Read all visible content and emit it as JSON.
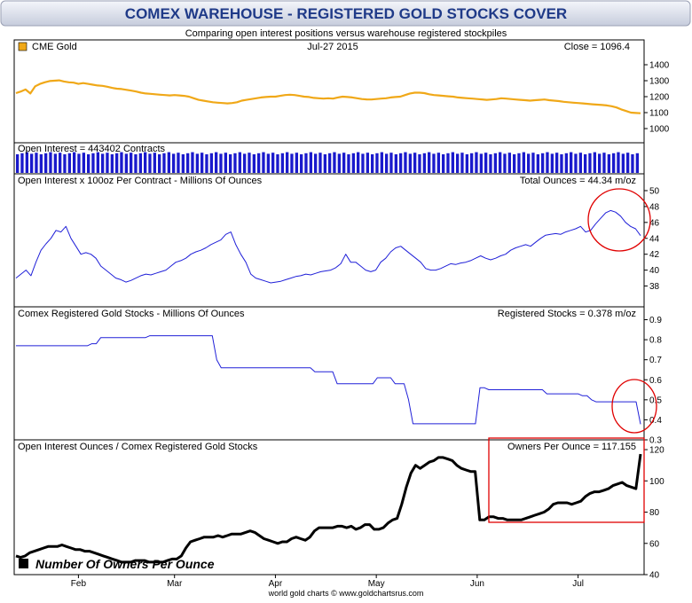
{
  "header": {
    "title": "COMEX WAREHOUSE - REGISTERED GOLD STOCKS COVER",
    "subtitle": "Comparing open interest positions versus warehouse registered stockpiles"
  },
  "footer": {
    "credit": "world gold charts  ©  www.goldchartsrus.com"
  },
  "colors": {
    "gold": "#f0a818",
    "oi": "#2020d8",
    "bars": "#1a1acc",
    "stocks": "#2020d8",
    "owners": "#000000",
    "annot": "#e00000",
    "title": "#1f3a88"
  },
  "chart_data": [
    {
      "type": "line",
      "panel": "gold",
      "legend": "CME Gold",
      "date_label": "Jul-27  2015",
      "close_label": "Close = 1096.4",
      "y_ticks": [
        1000,
        1100,
        1200,
        1300,
        1400
      ],
      "ylim": [
        950,
        1450
      ],
      "x_month_labels": [
        "Feb",
        "Mar",
        "Apr",
        "May",
        "Jun",
        "Jul"
      ],
      "x_month_index": [
        13,
        33,
        54,
        75,
        96,
        117
      ],
      "series": [
        {
          "values": [
            1222,
            1232,
            1245,
            1220,
            1265,
            1280,
            1290,
            1298,
            1300,
            1302,
            1295,
            1290,
            1288,
            1280,
            1285,
            1280,
            1275,
            1270,
            1268,
            1262,
            1255,
            1250,
            1248,
            1243,
            1238,
            1232,
            1225,
            1220,
            1218,
            1215,
            1212,
            1210,
            1208,
            1210,
            1208,
            1205,
            1200,
            1190,
            1180,
            1175,
            1170,
            1165,
            1162,
            1160,
            1158,
            1160,
            1165,
            1175,
            1180,
            1185,
            1190,
            1195,
            1198,
            1200,
            1200,
            1205,
            1210,
            1212,
            1210,
            1205,
            1200,
            1198,
            1192,
            1190,
            1188,
            1190,
            1188,
            1195,
            1200,
            1198,
            1195,
            1190,
            1185,
            1183,
            1182,
            1185,
            1188,
            1190,
            1195,
            1198,
            1200,
            1210,
            1220,
            1225,
            1225,
            1222,
            1215,
            1210,
            1208,
            1205,
            1202,
            1200,
            1195,
            1192,
            1190,
            1188,
            1185,
            1183,
            1180,
            1182,
            1185,
            1190,
            1188,
            1185,
            1182,
            1180,
            1178,
            1175,
            1178,
            1180,
            1182,
            1178,
            1175,
            1172,
            1168,
            1165,
            1162,
            1160,
            1158,
            1155,
            1152,
            1150,
            1148,
            1145,
            1140,
            1132,
            1120,
            1110,
            1100,
            1098,
            1096
          ]
        }
      ]
    },
    {
      "type": "bar",
      "panel": "open-interest-contracts",
      "label": "Open Interest = 443402 Contracts",
      "bar_count": 132
    },
    {
      "type": "line",
      "panel": "open-interest-ounces",
      "label": "Open Interest x 100oz Per Contract - Millions Of Ounces",
      "value_label": "Total Ounces = 44.34 m/oz",
      "y_ticks": [
        38,
        40,
        42,
        44,
        46,
        48,
        50
      ],
      "ylim": [
        36.5,
        51
      ],
      "series": [
        {
          "values": [
            39.0,
            39.5,
            40.0,
            39.3,
            41.0,
            42.5,
            43.3,
            44.0,
            45.0,
            44.8,
            45.5,
            44.0,
            43.0,
            42.0,
            42.2,
            42.0,
            41.5,
            40.5,
            40.0,
            39.5,
            39.0,
            38.8,
            38.5,
            38.7,
            39.0,
            39.3,
            39.5,
            39.4,
            39.6,
            39.8,
            40.0,
            40.5,
            41.0,
            41.2,
            41.5,
            42.0,
            42.3,
            42.5,
            42.8,
            43.2,
            43.5,
            43.8,
            44.5,
            44.8,
            43.2,
            42.0,
            41.0,
            39.5,
            39.0,
            38.8,
            38.6,
            38.4,
            38.5,
            38.6,
            38.8,
            39.0,
            39.2,
            39.3,
            39.5,
            39.4,
            39.6,
            39.8,
            39.9,
            40.0,
            40.3,
            40.8,
            42.0,
            41.0,
            41.0,
            40.5,
            40.0,
            39.8,
            40.0,
            41.0,
            41.5,
            42.3,
            42.8,
            43.0,
            42.5,
            42.0,
            41.5,
            41.0,
            40.2,
            40.0,
            40.0,
            40.2,
            40.5,
            40.8,
            40.7,
            40.9,
            41.0,
            41.2,
            41.5,
            41.8,
            41.5,
            41.3,
            41.5,
            41.8,
            42.0,
            42.5,
            42.8,
            43.0,
            43.2,
            43.0,
            43.5,
            44.0,
            44.4,
            44.5,
            44.6,
            44.5,
            44.8,
            45.0,
            45.2,
            45.5,
            44.8,
            45.0,
            45.8,
            46.5,
            47.2,
            47.5,
            47.3,
            46.8,
            46.0,
            45.5,
            45.2,
            44.34
          ]
        }
      ]
    },
    {
      "type": "line",
      "panel": "registered-stocks",
      "label": "Comex Registered Gold Stocks - Millions Of Ounces",
      "value_label": "Registered Stocks = 0.378 m/oz",
      "y_ticks": [
        0.3,
        0.4,
        0.5,
        0.6,
        0.7,
        0.8,
        0.9
      ],
      "ylim": [
        0.3,
        0.92
      ],
      "series": [
        {
          "values": [
            0.77,
            0.77,
            0.77,
            0.77,
            0.77,
            0.77,
            0.77,
            0.77,
            0.77,
            0.77,
            0.77,
            0.77,
            0.77,
            0.77,
            0.77,
            0.77,
            0.77,
            0.78,
            0.78,
            0.81,
            0.81,
            0.81,
            0.81,
            0.81,
            0.81,
            0.81,
            0.81,
            0.81,
            0.81,
            0.81,
            0.82,
            0.82,
            0.82,
            0.82,
            0.82,
            0.82,
            0.82,
            0.82,
            0.82,
            0.82,
            0.82,
            0.82,
            0.82,
            0.82,
            0.82,
            0.7,
            0.66,
            0.66,
            0.66,
            0.66,
            0.66,
            0.66,
            0.66,
            0.66,
            0.66,
            0.66,
            0.66,
            0.66,
            0.66,
            0.66,
            0.66,
            0.66,
            0.66,
            0.66,
            0.66,
            0.66,
            0.66,
            0.64,
            0.64,
            0.64,
            0.64,
            0.64,
            0.58,
            0.58,
            0.58,
            0.58,
            0.58,
            0.58,
            0.58,
            0.58,
            0.58,
            0.61,
            0.61,
            0.61,
            0.61,
            0.58,
            0.58,
            0.58,
            0.5,
            0.38,
            0.38,
            0.38,
            0.38,
            0.38,
            0.38,
            0.38,
            0.38,
            0.38,
            0.38,
            0.38,
            0.38,
            0.38,
            0.38,
            0.38,
            0.56,
            0.56,
            0.55,
            0.55,
            0.55,
            0.55,
            0.55,
            0.55,
            0.55,
            0.55,
            0.55,
            0.55,
            0.55,
            0.55,
            0.55,
            0.53,
            0.53,
            0.53,
            0.53,
            0.53,
            0.53,
            0.53,
            0.53,
            0.52,
            0.52,
            0.5,
            0.49,
            0.49,
            0.49,
            0.49,
            0.49,
            0.49,
            0.49,
            0.49,
            0.49,
            0.49,
            0.378
          ]
        }
      ]
    },
    {
      "type": "line",
      "panel": "owners-per-ounce",
      "label": "Open Interest Ounces / Comex Registered Gold Stocks",
      "value_label": "Owners Per Ounce = 117.155",
      "legend": "Number Of Owners Per Ounce",
      "y_ticks": [
        40,
        60,
        80,
        100,
        120
      ],
      "ylim": [
        40,
        124
      ],
      "series": [
        {
          "values": [
            52,
            51,
            52,
            54,
            55,
            56,
            57,
            58,
            58,
            58,
            59,
            58,
            57,
            56,
            56,
            55,
            55,
            54,
            53,
            52,
            51,
            50,
            49,
            48,
            48,
            48,
            49,
            49,
            49,
            48,
            48,
            48,
            48,
            49,
            50,
            50,
            52,
            57,
            61,
            62,
            63,
            64,
            64,
            64,
            65,
            64,
            65,
            66,
            66,
            66,
            67,
            68,
            67,
            65,
            63,
            62,
            61,
            60,
            61,
            61,
            63,
            64,
            63,
            62,
            64,
            68,
            70,
            70,
            70,
            70,
            71,
            71,
            70,
            71,
            69,
            70,
            72,
            72,
            69,
            69,
            70,
            73,
            75,
            76,
            85,
            96,
            105,
            110,
            108,
            110,
            112,
            113,
            115,
            115,
            114,
            113,
            110,
            108,
            107,
            106,
            106,
            75,
            75,
            77,
            77,
            76,
            76,
            75,
            75,
            75,
            75,
            76,
            77,
            78,
            79,
            80,
            82,
            85,
            86,
            86,
            86,
            85,
            86,
            87,
            90,
            92,
            93,
            93,
            94,
            95,
            97,
            98,
            99,
            97,
            96,
            95,
            117.155
          ]
        }
      ]
    }
  ]
}
